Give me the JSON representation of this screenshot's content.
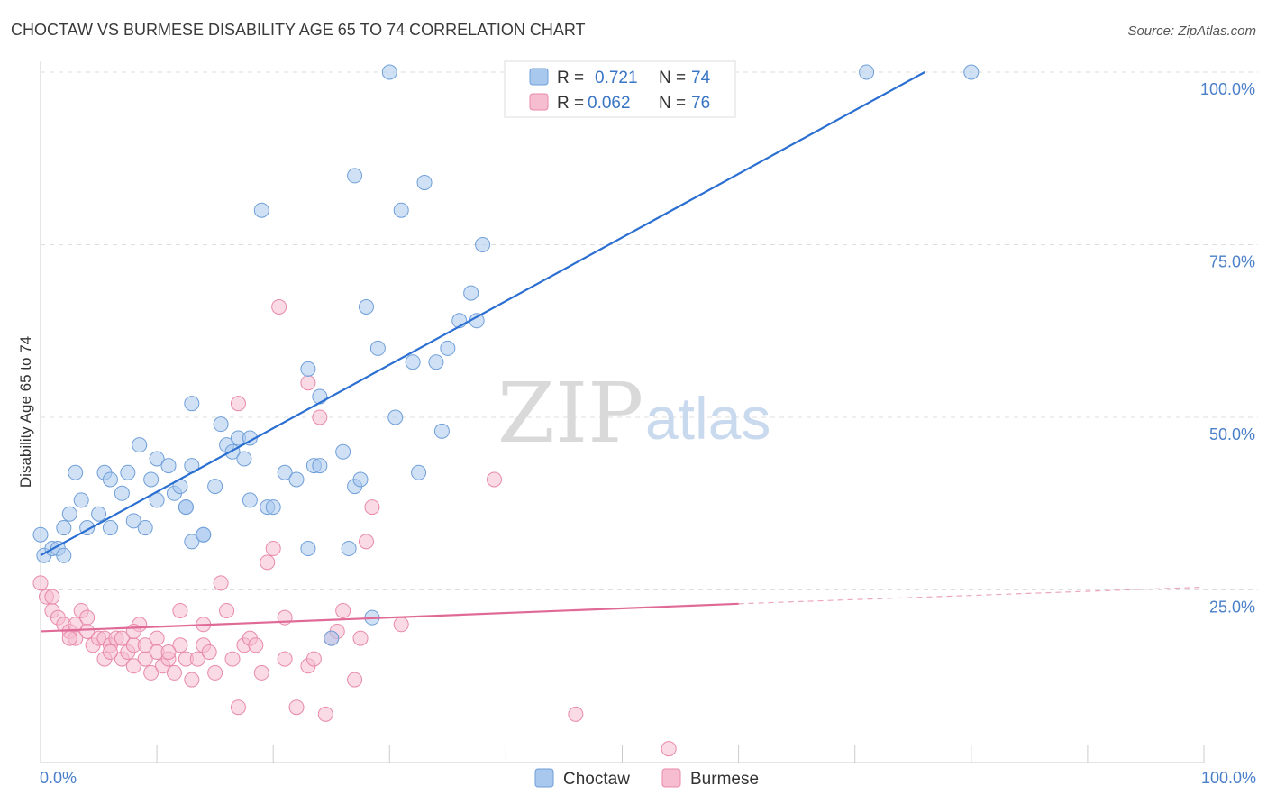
{
  "header": {
    "title": "CHOCTAW VS BURMESE DISABILITY AGE 65 TO 74 CORRELATION CHART",
    "source": "Source: ZipAtlas.com"
  },
  "watermark": {
    "zip": "ZIP",
    "atlas": "atlas"
  },
  "legend": {
    "rows": [
      {
        "r_label": "R =",
        "r_value": "0.721",
        "n_label": "N =",
        "n_value": "74"
      },
      {
        "r_label": "R =",
        "r_value": "0.062",
        "n_label": "N =",
        "n_value": "76"
      }
    ]
  },
  "bottom_legend": {
    "items": [
      "Choctaw",
      "Burmese"
    ]
  },
  "colors": {
    "choctaw_fill": "#a9c8ee",
    "choctaw_stroke": "#6f9fd8",
    "choctaw_line": "#2a6fd1",
    "burmese_fill": "#f6bcd0",
    "burmese_stroke": "#e88aa9",
    "burmese_line": "#e06a96",
    "tick_label": "#4a7fc9",
    "grid": "#dddddd"
  },
  "chart_data": {
    "type": "scatter",
    "title": "CHOCTAW VS BURMESE DISABILITY AGE 65 TO 74 CORRELATION CHART",
    "xlabel": "",
    "ylabel": "Disability Age 65 to 74",
    "xlim": [
      0,
      100
    ],
    "ylim": [
      0,
      100
    ],
    "x_tick_labels": [
      "0.0%",
      "100.0%"
    ],
    "y_tick_labels": [
      "25.0%",
      "50.0%",
      "75.0%",
      "100.0%"
    ],
    "y_ticks": [
      25,
      50,
      75,
      100
    ],
    "grid": true,
    "legend_position": "top-center",
    "series": [
      {
        "name": "Choctaw",
        "R": 0.721,
        "N": 74,
        "trend": {
          "x": [
            0,
            76
          ],
          "y": [
            30,
            100
          ]
        },
        "points": [
          [
            0.3,
            30
          ],
          [
            1,
            31
          ],
          [
            1.5,
            31
          ],
          [
            2,
            34
          ],
          [
            2.5,
            36
          ],
          [
            3,
            42
          ],
          [
            3.5,
            38
          ],
          [
            4,
            34
          ],
          [
            5,
            36
          ],
          [
            5.5,
            42
          ],
          [
            6,
            41
          ],
          [
            7,
            39
          ],
          [
            7.5,
            42
          ],
          [
            8,
            35
          ],
          [
            8.5,
            46
          ],
          [
            9,
            34
          ],
          [
            9.5,
            41
          ],
          [
            10,
            44
          ],
          [
            11,
            43
          ],
          [
            11.5,
            39
          ],
          [
            12,
            40
          ],
          [
            12.5,
            37
          ],
          [
            12.5,
            37
          ],
          [
            13,
            52
          ],
          [
            13,
            43
          ],
          [
            13,
            32
          ],
          [
            14,
            33
          ],
          [
            14,
            33
          ],
          [
            15,
            40
          ],
          [
            15.5,
            49
          ],
          [
            16,
            46
          ],
          [
            16.5,
            45
          ],
          [
            17,
            47
          ],
          [
            17.5,
            44
          ],
          [
            18,
            47
          ],
          [
            18,
            38
          ],
          [
            19,
            80
          ],
          [
            19.5,
            37
          ],
          [
            20,
            37
          ],
          [
            21,
            42
          ],
          [
            22,
            41
          ],
          [
            23,
            57
          ],
          [
            23,
            31
          ],
          [
            23.5,
            43
          ],
          [
            24,
            53
          ],
          [
            24,
            43
          ],
          [
            25,
            18
          ],
          [
            26,
            45
          ],
          [
            26.5,
            31
          ],
          [
            27,
            85
          ],
          [
            27,
            40
          ],
          [
            27.5,
            41
          ],
          [
            28,
            66
          ],
          [
            28.5,
            21
          ],
          [
            29,
            60
          ],
          [
            30,
            100
          ],
          [
            30.5,
            50
          ],
          [
            31,
            80
          ],
          [
            32,
            58
          ],
          [
            32.5,
            42
          ],
          [
            33,
            84
          ],
          [
            34,
            58
          ],
          [
            34.5,
            48
          ],
          [
            35,
            60
          ],
          [
            36,
            64
          ],
          [
            37,
            68
          ],
          [
            37.5,
            64
          ],
          [
            38,
            75
          ],
          [
            71,
            100
          ],
          [
            80,
            100
          ],
          [
            0,
            33
          ],
          [
            2,
            30
          ],
          [
            6,
            34
          ],
          [
            10,
            38
          ]
        ]
      },
      {
        "name": "Burmese",
        "R": 0.062,
        "N": 76,
        "trend": {
          "x": [
            0,
            60
          ],
          "y": [
            19,
            23
          ]
        },
        "trend_dashed": {
          "x": [
            60,
            100
          ],
          "y": [
            23,
            25.4
          ]
        },
        "points": [
          [
            0,
            26
          ],
          [
            0.5,
            24
          ],
          [
            1,
            22
          ],
          [
            1.5,
            21
          ],
          [
            2,
            20
          ],
          [
            2.5,
            19
          ],
          [
            3,
            18
          ],
          [
            3,
            20
          ],
          [
            3.5,
            22
          ],
          [
            4,
            19
          ],
          [
            4.5,
            17
          ],
          [
            5,
            18
          ],
          [
            5.5,
            15
          ],
          [
            5.5,
            18
          ],
          [
            6,
            17
          ],
          [
            6.5,
            18
          ],
          [
            7,
            15
          ],
          [
            7,
            18
          ],
          [
            7.5,
            16
          ],
          [
            8,
            17
          ],
          [
            8,
            14
          ],
          [
            8.5,
            20
          ],
          [
            9,
            15
          ],
          [
            9,
            17
          ],
          [
            9.5,
            13
          ],
          [
            10,
            18
          ],
          [
            10,
            16
          ],
          [
            10.5,
            14
          ],
          [
            11,
            15
          ],
          [
            11.5,
            13
          ],
          [
            12,
            17
          ],
          [
            12,
            22
          ],
          [
            12.5,
            15
          ],
          [
            13,
            12
          ],
          [
            13.5,
            15
          ],
          [
            14,
            17
          ],
          [
            14,
            20
          ],
          [
            14.5,
            16
          ],
          [
            15,
            13
          ],
          [
            15.5,
            26
          ],
          [
            16,
            22
          ],
          [
            16.5,
            15
          ],
          [
            17,
            52
          ],
          [
            17,
            8
          ],
          [
            17.5,
            17
          ],
          [
            18,
            18
          ],
          [
            18.5,
            17
          ],
          [
            19,
            13
          ],
          [
            19.5,
            29
          ],
          [
            20,
            31
          ],
          [
            20.5,
            66
          ],
          [
            21,
            21
          ],
          [
            21,
            15
          ],
          [
            22,
            8
          ],
          [
            23,
            14
          ],
          [
            23,
            55
          ],
          [
            23.5,
            15
          ],
          [
            24,
            50
          ],
          [
            24.5,
            7
          ],
          [
            25,
            18
          ],
          [
            25.5,
            19
          ],
          [
            26,
            22
          ],
          [
            27,
            12
          ],
          [
            27.5,
            18
          ],
          [
            28,
            32
          ],
          [
            28.5,
            37
          ],
          [
            31,
            20
          ],
          [
            39,
            41
          ],
          [
            46,
            7
          ],
          [
            54,
            2
          ],
          [
            1,
            24
          ],
          [
            2.5,
            18
          ],
          [
            4,
            21
          ],
          [
            6,
            16
          ],
          [
            8,
            19
          ],
          [
            11,
            16
          ]
        ]
      }
    ]
  }
}
